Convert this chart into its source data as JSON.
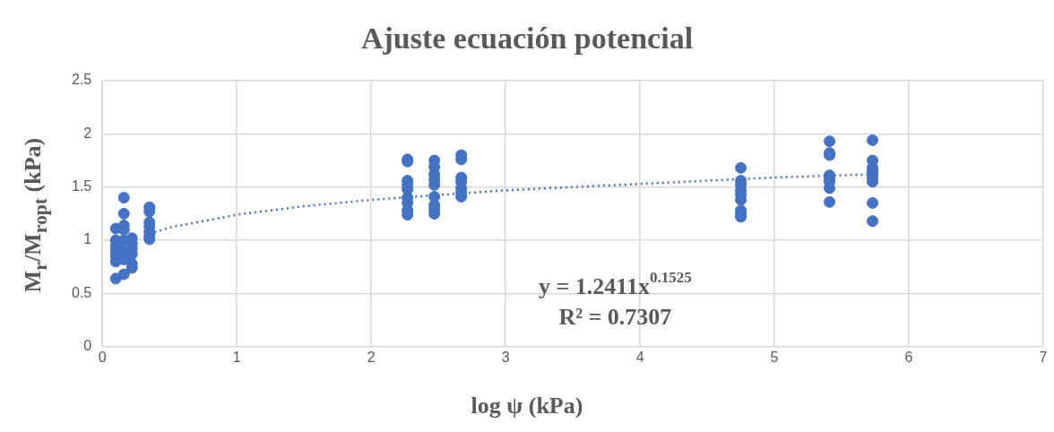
{
  "chart_data": {
    "type": "scatter",
    "title": "Ajuste ecuación potencial",
    "xlabel": "log ψ (kPa)",
    "ylabel": "M$_{r}$/M$_{ropt}$ (kPa)",
    "series": [
      {
        "color": "#4472c4",
        "x": [
          0.1,
          0.1,
          0.1,
          0.1,
          0.1,
          0.1,
          0.1,
          0.16,
          0.16,
          0.16,
          0.16,
          0.16,
          0.16,
          0.16,
          0.16,
          0.22,
          0.22,
          0.22,
          0.22,
          0.22,
          0.22,
          0.35,
          0.35,
          0.35,
          0.35,
          0.35,
          0.35,
          0.35,
          2.27,
          2.27,
          2.27,
          2.27,
          2.27,
          2.27,
          2.27,
          2.27,
          2.27,
          2.47,
          2.47,
          2.47,
          2.47,
          2.47,
          2.47,
          2.47,
          2.47,
          2.47,
          2.67,
          2.67,
          2.67,
          2.67,
          2.67,
          2.67,
          2.67,
          4.75,
          4.75,
          4.75,
          4.75,
          4.75,
          4.75,
          4.75,
          4.75,
          4.75,
          5.41,
          5.41,
          5.41,
          5.41,
          5.41,
          5.41,
          5.41,
          5.41,
          5.73,
          5.73,
          5.73,
          5.73,
          5.73,
          5.73,
          5.73,
          5.73,
          5.73
        ],
        "values": [
          1.11,
          1.0,
          0.95,
          0.9,
          0.85,
          0.8,
          0.64,
          1.4,
          1.25,
          1.14,
          1.1,
          1.0,
          0.9,
          0.82,
          0.68,
          1.02,
          0.97,
          0.92,
          0.87,
          0.78,
          0.74,
          1.31,
          1.27,
          1.17,
          1.13,
          1.08,
          1.04,
          1.01,
          1.76,
          1.74,
          1.56,
          1.52,
          1.48,
          1.4,
          1.35,
          1.28,
          1.24,
          1.75,
          1.69,
          1.62,
          1.57,
          1.52,
          1.41,
          1.33,
          1.29,
          1.25,
          1.8,
          1.76,
          1.59,
          1.55,
          1.49,
          1.45,
          1.41,
          1.68,
          1.56,
          1.52,
          1.47,
          1.43,
          1.38,
          1.28,
          1.25,
          1.22,
          1.93,
          1.82,
          1.8,
          1.61,
          1.58,
          1.55,
          1.49,
          1.36,
          1.94,
          1.75,
          1.68,
          1.65,
          1.62,
          1.59,
          1.55,
          1.35,
          1.18
        ]
      },
      {
        "type": "line",
        "color": "#4472c4",
        "line_style": "dotted",
        "marker": "none",
        "x": [
          0.35,
          0.5,
          1,
          1.5,
          2,
          3,
          4,
          5,
          5.73
        ],
        "values": [
          1.06,
          1.12,
          1.24,
          1.32,
          1.38,
          1.47,
          1.53,
          1.59,
          1.62
        ]
      }
    ],
    "marker": "circle",
    "xlim": [
      0,
      7
    ],
    "xticks": [
      0,
      1,
      2,
      3,
      4,
      5,
      6,
      7
    ],
    "ylim": [
      0,
      2.5
    ],
    "yticks": [
      0,
      0.5,
      1,
      1.5,
      2,
      2.5
    ],
    "grid": true,
    "legend": false,
    "annotations": [
      "y = 1.2411x$^{0.1525}$",
      "R² = 0.7307"
    ]
  }
}
